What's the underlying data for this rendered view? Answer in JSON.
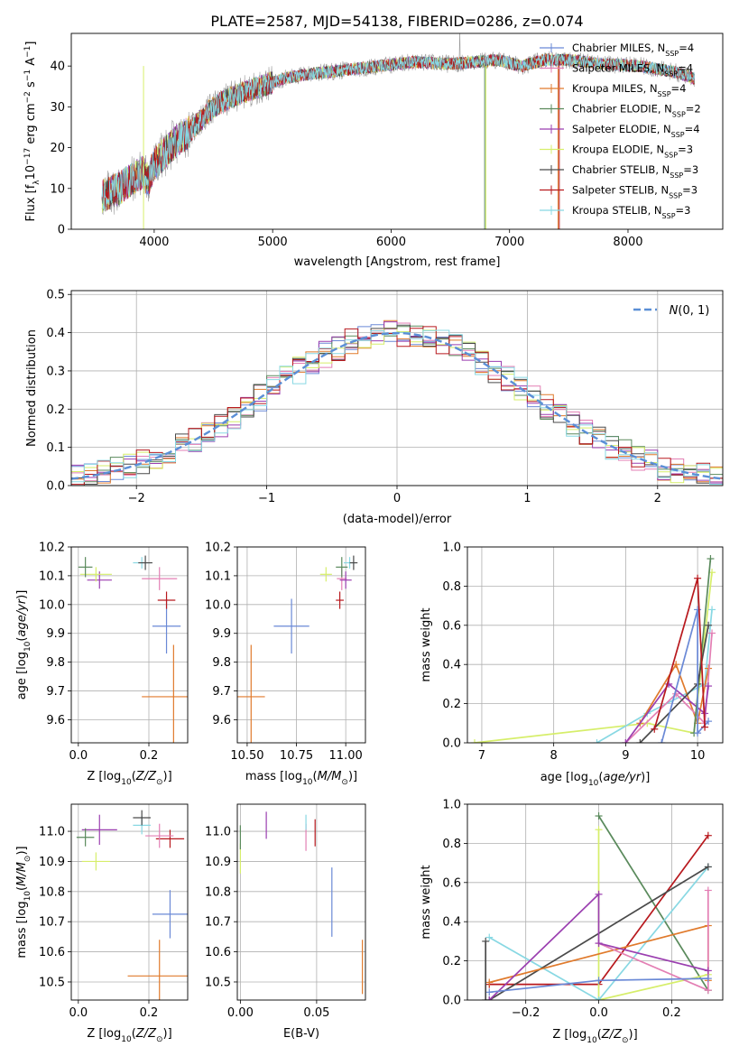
{
  "figure": {
    "title": "PLATE=2587, MJD=54138, FIBERID=0286, z=0.074"
  },
  "chart_data": [
    {
      "id": "spectrum",
      "type": "line",
      "xlabel": "wavelength [Angstrom, rest frame]",
      "ylabel": "Flux [f_λ10^-17 erg cm^-2 s^-1 A^-1]",
      "xlim": [
        3300,
        8800
      ],
      "ylim": [
        0,
        48
      ],
      "xticks": [
        4000,
        5000,
        6000,
        7000,
        8000
      ],
      "yticks": [
        0,
        10,
        20,
        30,
        40
      ],
      "grid": false,
      "legend_position": "top-right",
      "data_spectrum_color": "#9a9a9a",
      "envelope": {
        "x": [
          3560,
          3700,
          3800,
          3900,
          3950,
          4000,
          4100,
          4200,
          4300,
          4400,
          4500,
          4700,
          4900,
          5100,
          5300,
          5600,
          5900,
          6200,
          6500,
          6700,
          6900,
          7100,
          7300,
          7500,
          7800,
          8100,
          8400,
          8560
        ],
        "y": [
          8,
          10,
          12,
          14,
          12,
          16,
          19,
          22,
          24,
          27,
          30,
          33,
          35,
          37,
          38,
          39,
          40,
          41,
          40.5,
          41,
          41.5,
          40,
          41.5,
          41.5,
          40.5,
          40,
          38.5,
          37
        ]
      },
      "series": [
        {
          "name": "Chabrier MILES, N_SSP=4",
          "label_main": "Chabrier MILES, N",
          "label_sub": "SSP",
          "label_tail": "=4",
          "color": "#6a89d6"
        },
        {
          "name": "Salpeter MILES, N_SSP=4",
          "label_main": "Salpeter MILES, N",
          "label_sub": "SSP",
          "label_tail": "=4",
          "color": "#e37fb4"
        },
        {
          "name": "Kroupa MILES, N_SSP=4",
          "label_main": "Kroupa MILES, N",
          "label_sub": "SSP",
          "label_tail": "=4",
          "color": "#e07a2c"
        },
        {
          "name": "Chabrier ELODIE, N_SSP=2",
          "label_main": "Chabrier ELODIE, N",
          "label_sub": "SSP",
          "label_tail": "=2",
          "color": "#5a8a5c"
        },
        {
          "name": "Salpeter ELODIE, N_SSP=4",
          "label_main": "Salpeter ELODIE, N",
          "label_sub": "SSP",
          "label_tail": "=4",
          "color": "#9b3fb0"
        },
        {
          "name": "Kroupa ELODIE, N_SSP=3",
          "label_main": "Kroupa ELODIE, N",
          "label_sub": "SSP",
          "label_tail": "=3",
          "color": "#d6ee6a"
        },
        {
          "name": "Chabrier STELIB, N_SSP=3",
          "label_main": "Chabrier STELIB, N",
          "label_sub": "SSP",
          "label_tail": "=3",
          "color": "#4a4a4a"
        },
        {
          "name": "Salpeter STELIB, N_SSP=3",
          "label_main": "Salpeter STELIB, N",
          "label_sub": "SSP",
          "label_tail": "=3",
          "color": "#b8191e"
        },
        {
          "name": "Kroupa STELIB, N_SSP=3",
          "label_main": "Kroupa STELIB, N",
          "label_sub": "SSP",
          "label_tail": "=3",
          "color": "#88d8e3"
        }
      ]
    },
    {
      "id": "residuals",
      "type": "line",
      "xlabel": "(data-model)/error",
      "ylabel": "Normed distribution",
      "xlim": [
        -2.5,
        2.5
      ],
      "ylim": [
        0,
        0.51
      ],
      "xticks": [
        -2,
        -1,
        0,
        1,
        2
      ],
      "yticks": [
        0.0,
        0.1,
        0.2,
        0.3,
        0.4,
        0.5
      ],
      "grid": true,
      "legend_position": "top-right",
      "gaussian": {
        "name": "N(0,1)",
        "color": "#5b8fd6"
      },
      "bin_width": 0.1
    },
    {
      "id": "age_vs_Z",
      "type": "scatter",
      "xlabel": "Z [log10(Z/Z⊙)]",
      "ylabel": "age  [log10(age/yr)]",
      "xlim": [
        -0.02,
        0.31
      ],
      "ylim": [
        9.52,
        10.2
      ],
      "xticks": [
        0.0,
        0.2
      ],
      "yticks": [
        9.6,
        9.7,
        9.8,
        9.9,
        10.0,
        10.1,
        10.2
      ],
      "grid": true,
      "points": [
        {
          "x": 0.27,
          "y": 9.68,
          "xerr": 0.09,
          "yerr": 0.18,
          "color": "#e07a2c"
        },
        {
          "x": 0.25,
          "y": 9.925,
          "xerr": 0.04,
          "yerr": 0.095,
          "color": "#6a89d6"
        },
        {
          "x": 0.25,
          "y": 10.015,
          "xerr": 0.025,
          "yerr": 0.03,
          "color": "#b8191e"
        },
        {
          "x": 0.23,
          "y": 10.09,
          "xerr": 0.05,
          "yerr": 0.04,
          "color": "#e37fb4"
        },
        {
          "x": 0.06,
          "y": 10.085,
          "xerr": 0.035,
          "yerr": 0.03,
          "color": "#9b3fb0"
        },
        {
          "x": 0.05,
          "y": 10.105,
          "xerr": 0.045,
          "yerr": 0.025,
          "color": "#d6ee6a"
        },
        {
          "x": 0.02,
          "y": 10.13,
          "xerr": 0.02,
          "yerr": 0.035,
          "color": "#5a8a5c"
        },
        {
          "x": 0.18,
          "y": 10.145,
          "xerr": 0.025,
          "yerr": 0.02,
          "color": "#88d8e3"
        },
        {
          "x": 0.19,
          "y": 10.145,
          "xerr": 0.02,
          "yerr": 0.025,
          "color": "#4a4a4a"
        }
      ]
    },
    {
      "id": "age_vs_mass",
      "type": "scatter",
      "xlabel": "mass [log10(M/M⊙)]",
      "xlim": [
        10.45,
        11.1
      ],
      "ylim": [
        9.52,
        10.2
      ],
      "xticks": [
        10.5,
        10.75,
        11.0
      ],
      "yticks": [
        9.6,
        9.7,
        9.8,
        9.9,
        10.0,
        10.1,
        10.2
      ],
      "grid": true,
      "points": [
        {
          "x": 10.52,
          "y": 9.68,
          "xerr": 0.07,
          "yerr": 0.18,
          "color": "#e07a2c"
        },
        {
          "x": 10.725,
          "y": 9.925,
          "xerr": 0.09,
          "yerr": 0.095,
          "color": "#6a89d6"
        },
        {
          "x": 10.97,
          "y": 10.015,
          "xerr": 0.02,
          "yerr": 0.03,
          "color": "#b8191e"
        },
        {
          "x": 10.98,
          "y": 10.09,
          "xerr": 0.025,
          "yerr": 0.04,
          "color": "#e37fb4"
        },
        {
          "x": 11.0,
          "y": 10.085,
          "xerr": 0.03,
          "yerr": 0.03,
          "color": "#9b3fb0"
        },
        {
          "x": 10.9,
          "y": 10.105,
          "xerr": 0.03,
          "yerr": 0.025,
          "color": "#d6ee6a"
        },
        {
          "x": 10.98,
          "y": 10.13,
          "xerr": 0.03,
          "yerr": 0.035,
          "color": "#5a8a5c"
        },
        {
          "x": 11.02,
          "y": 10.145,
          "xerr": 0.03,
          "yerr": 0.02,
          "color": "#88d8e3"
        },
        {
          "x": 11.04,
          "y": 10.145,
          "xerr": 0.02,
          "yerr": 0.025,
          "color": "#4a4a4a"
        }
      ]
    },
    {
      "id": "weight_vs_age",
      "type": "line",
      "xlabel": "age  [log10(age/yr)]",
      "ylabel": "mass weight",
      "xlim": [
        6.8,
        10.35
      ],
      "ylim": [
        0,
        1.0
      ],
      "xticks": [
        7,
        8,
        9,
        10
      ],
      "yticks": [
        0.0,
        0.2,
        0.4,
        0.6,
        0.8,
        1.0
      ],
      "grid": true,
      "series": [
        {
          "color": "#d6ee6a",
          "points": [
            [
              6.9,
              0.0
            ],
            [
              9.3,
              0.1
            ],
            [
              9.95,
              0.05
            ],
            [
              10.2,
              0.87
            ]
          ]
        },
        {
          "color": "#88d8e3",
          "points": [
            [
              8.6,
              0.0
            ],
            [
              9.3,
              0.15
            ],
            [
              10.1,
              0.3
            ],
            [
              10.2,
              0.68
            ]
          ]
        },
        {
          "color": "#e07a2c",
          "points": [
            [
              9.2,
              0.1
            ],
            [
              9.7,
              0.4
            ],
            [
              10.0,
              0.1
            ],
            [
              10.15,
              0.38
            ]
          ]
        },
        {
          "color": "#e37fb4",
          "points": [
            [
              9.0,
              0.0
            ],
            [
              9.7,
              0.25
            ],
            [
              10.1,
              0.1
            ],
            [
              10.2,
              0.56
            ]
          ]
        },
        {
          "color": "#9b3fb0",
          "points": [
            [
              9.0,
              0.0
            ],
            [
              9.6,
              0.3
            ],
            [
              10.1,
              0.15
            ],
            [
              10.15,
              0.29
            ]
          ]
        },
        {
          "color": "#5a8a5c",
          "points": [
            [
              9.95,
              0.05
            ],
            [
              10.18,
              0.94
            ]
          ]
        },
        {
          "color": "#4a4a4a",
          "points": [
            [
              9.2,
              0.0
            ],
            [
              10.0,
              0.3
            ],
            [
              10.15,
              0.6
            ]
          ]
        },
        {
          "color": "#6a89d6",
          "points": [
            [
              9.5,
              0.0
            ],
            [
              10.0,
              0.68
            ],
            [
              10.0,
              0.05
            ],
            [
              10.15,
              0.11
            ]
          ]
        },
        {
          "color": "#b8191e",
          "points": [
            [
              9.4,
              0.07
            ],
            [
              10.0,
              0.84
            ],
            [
              10.1,
              0.08
            ]
          ]
        }
      ]
    },
    {
      "id": "mass_vs_Z",
      "type": "scatter",
      "xlabel": "Z [log10(Z/Z⊙)]",
      "ylabel": "mass [log10(M/M⊙)]",
      "xlim": [
        -0.02,
        0.31
      ],
      "ylim": [
        10.44,
        11.09
      ],
      "xticks": [
        0.0,
        0.2
      ],
      "yticks": [
        10.5,
        10.6,
        10.7,
        10.8,
        10.9,
        11.0
      ],
      "grid": true,
      "points": [
        {
          "x": 0.23,
          "y": 10.52,
          "xerr": 0.09,
          "yerr": 0.12,
          "color": "#e07a2c"
        },
        {
          "x": 0.26,
          "y": 10.725,
          "xerr": 0.05,
          "yerr": 0.08,
          "color": "#6a89d6"
        },
        {
          "x": 0.05,
          "y": 10.9,
          "xerr": 0.04,
          "yerr": 0.03,
          "color": "#d6ee6a"
        },
        {
          "x": 0.26,
          "y": 10.975,
          "xerr": 0.04,
          "yerr": 0.03,
          "color": "#b8191e"
        },
        {
          "x": 0.23,
          "y": 10.985,
          "xerr": 0.04,
          "yerr": 0.04,
          "color": "#e37fb4"
        },
        {
          "x": 0.06,
          "y": 11.005,
          "xerr": 0.05,
          "yerr": 0.05,
          "color": "#9b3fb0"
        },
        {
          "x": 0.02,
          "y": 10.98,
          "xerr": 0.025,
          "yerr": 0.03,
          "color": "#5a8a5c"
        },
        {
          "x": 0.18,
          "y": 11.02,
          "xerr": 0.025,
          "yerr": 0.03,
          "color": "#88d8e3"
        },
        {
          "x": 0.18,
          "y": 11.045,
          "xerr": 0.025,
          "yerr": 0.025,
          "color": "#4a4a4a"
        }
      ]
    },
    {
      "id": "mass_vs_ebv",
      "type": "scatter",
      "xlabel": "E(B-V)",
      "xlim": [
        -0.002,
        0.082
      ],
      "ylim": [
        10.44,
        11.09
      ],
      "xticks": [
        0.0,
        0.05
      ],
      "yticks": [
        10.5,
        10.6,
        10.7,
        10.8,
        10.9,
        11.0
      ],
      "grid": true,
      "points": [
        {
          "x": 0.08,
          "y": 10.55,
          "xerr": 0.0,
          "yerr": 0.09,
          "color": "#e07a2c"
        },
        {
          "x": 0.06,
          "y": 10.765,
          "xerr": 0.0,
          "yerr": 0.115,
          "color": "#6a89d6"
        },
        {
          "x": 0.0,
          "y": 10.91,
          "xerr": 0.0,
          "yerr": 0.05,
          "color": "#d6ee6a"
        },
        {
          "x": 0.0,
          "y": 10.98,
          "xerr": 0.0,
          "yerr": 0.04,
          "color": "#5a8a5c"
        },
        {
          "x": 0.017,
          "y": 11.02,
          "xerr": 0.0,
          "yerr": 0.045,
          "color": "#9b3fb0"
        },
        {
          "x": 0.043,
          "y": 10.98,
          "xerr": 0.0,
          "yerr": 0.045,
          "color": "#e37fb4"
        },
        {
          "x": 0.043,
          "y": 11.03,
          "xerr": 0.0,
          "yerr": 0.025,
          "color": "#88d8e3"
        },
        {
          "x": 0.049,
          "y": 10.995,
          "xerr": 0.0,
          "yerr": 0.045,
          "color": "#b8191e"
        }
      ]
    },
    {
      "id": "weight_vs_Z",
      "type": "line",
      "xlabel": "Z [log10(Z/Z⊙)]",
      "ylabel": "mass weight",
      "xlim": [
        -0.36,
        0.34
      ],
      "ylim": [
        0,
        1.0
      ],
      "xticks": [
        -0.2,
        0.0,
        0.2
      ],
      "yticks": [
        0.0,
        0.2,
        0.4,
        0.6,
        0.8,
        1.0
      ],
      "grid": true,
      "series": [
        {
          "color": "#5a8a5c",
          "points": [
            [
              0.0,
              0.94
            ],
            [
              0.3,
              0.05
            ]
          ]
        },
        {
          "color": "#b8191e",
          "points": [
            [
              -0.3,
              0.08
            ],
            [
              0.0,
              0.08
            ],
            [
              0.3,
              0.84
            ]
          ]
        },
        {
          "color": "#d6ee6a",
          "points": [
            [
              0.0,
              0.87
            ],
            [
              0.0,
              0.0
            ],
            [
              0.3,
              0.13
            ]
          ]
        },
        {
          "color": "#88d8e3",
          "points": [
            [
              -0.3,
              0.32
            ],
            [
              0.0,
              0.0
            ],
            [
              0.3,
              0.68
            ]
          ]
        },
        {
          "color": "#4a4a4a",
          "points": [
            [
              -0.3,
              0.0
            ],
            [
              0.3,
              0.68
            ]
          ]
        },
        {
          "color": "#e07a2c",
          "points": [
            [
              -0.3,
              0.09
            ],
            [
              0.3,
              0.38
            ],
            [
              0.3,
              0.1
            ]
          ]
        },
        {
          "color": "#e37fb4",
          "points": [
            [
              0.0,
              0.29
            ],
            [
              0.3,
              0.05
            ],
            [
              0.3,
              0.56
            ]
          ]
        },
        {
          "color": "#9b3fb0",
          "points": [
            [
              -0.3,
              0.0
            ],
            [
              0.0,
              0.54
            ],
            [
              0.0,
              0.29
            ],
            [
              0.3,
              0.15
            ]
          ]
        },
        {
          "color": "#6a89d6",
          "points": [
            [
              -0.3,
              0.04
            ],
            [
              0.0,
              0.1
            ],
            [
              0.3,
              0.11
            ]
          ]
        },
        {
          "color": "#4a4a4a",
          "points": [
            [
              -0.31,
              0.0
            ],
            [
              -0.31,
              0.3
            ]
          ]
        }
      ]
    }
  ]
}
